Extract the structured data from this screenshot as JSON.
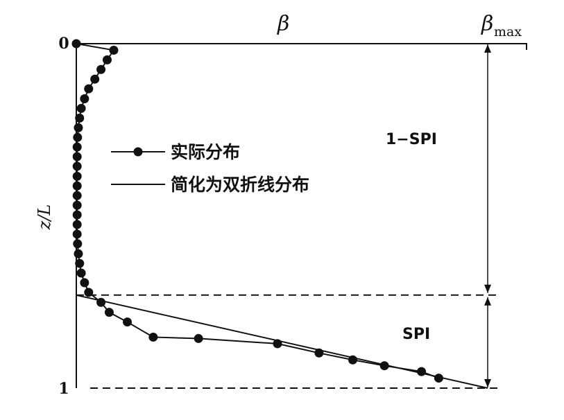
{
  "chart_data": {
    "type": "line",
    "x_axis_label": "β",
    "x_axis_max_label": "β",
    "x_axis_max_subscript": "max",
    "y_axis_label": "z/L",
    "y_ticks": [
      "0",
      "1"
    ],
    "ylim": [
      0,
      1
    ],
    "y_inverted": true,
    "xlim": [
      0,
      1
    ],
    "spi_boundary_z": 0.73,
    "regions": {
      "upper": "1−SPI",
      "lower": "SPI"
    },
    "legend": {
      "actual": "实际分布",
      "simplified": "简化为双折线分布"
    },
    "series": [
      {
        "key": "actual",
        "name": "实际分布",
        "marker": "circle",
        "x": [
          0.0,
          0.091,
          0.075,
          0.06,
          0.045,
          0.03,
          0.02,
          0.012,
          0.008,
          0.005,
          0.003,
          0.002,
          0.002,
          0.002,
          0.002,
          0.002,
          0.002,
          0.002,
          0.002,
          0.002,
          0.002,
          0.003,
          0.005,
          0.008,
          0.012,
          0.02,
          0.03,
          0.06,
          0.08,
          0.124,
          0.187,
          0.297,
          0.489,
          0.59,
          0.672,
          0.749,
          0.839,
          0.881
        ],
        "y": [
          0.0,
          0.019,
          0.047,
          0.075,
          0.103,
          0.131,
          0.16,
          0.188,
          0.216,
          0.244,
          0.272,
          0.3,
          0.328,
          0.356,
          0.385,
          0.413,
          0.441,
          0.469,
          0.497,
          0.525,
          0.553,
          0.581,
          0.61,
          0.638,
          0.666,
          0.694,
          0.722,
          0.751,
          0.78,
          0.808,
          0.852,
          0.856,
          0.871,
          0.898,
          0.918,
          0.935,
          0.952,
          0.971
        ]
      },
      {
        "key": "simplified",
        "name": "简化为双折线分布",
        "x": [
          0.0,
          0.0,
          1.0
        ],
        "y": [
          0.0,
          0.73,
          1.0
        ]
      }
    ]
  }
}
